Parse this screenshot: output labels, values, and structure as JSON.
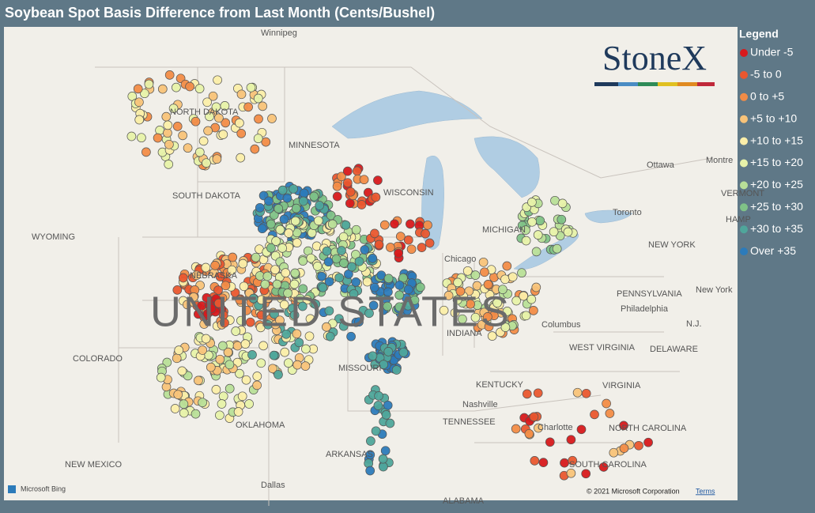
{
  "title": "Soybean Spot Basis Difference from Last Month (Cents/Bushel)",
  "legend": {
    "title": "Legend",
    "items": [
      {
        "label": "Under -5",
        "color": "#d7191c"
      },
      {
        "label": "-5 to 0",
        "color": "#e9572f"
      },
      {
        "label": "0 to +5",
        "color": "#f28c47"
      },
      {
        "label": "+5 to +10",
        "color": "#f8c379"
      },
      {
        "label": "+10 to +15",
        "color": "#fbeea9"
      },
      {
        "label": "+15 to +20",
        "color": "#e7f2a9"
      },
      {
        "label": "+20 to +25",
        "color": "#b8df98"
      },
      {
        "label": "+25 to +30",
        "color": "#80c287"
      },
      {
        "label": "+30 to +35",
        "color": "#4fa69b"
      },
      {
        "label": "Over +35",
        "color": "#2c7bba"
      }
    ]
  },
  "logo": "StoneX",
  "map_labels": [
    "Winnipeg",
    "NORTH DAKOTA",
    "MINNESOTA",
    "SOUTH DAKOTA",
    "WISCONSIN",
    "WYOMING",
    "NEBRASKA",
    "UNITED STATES",
    "COLORADO",
    "MISSOURI",
    "KENTUCKY",
    "OKLAHOMA",
    "ARKANSAS",
    "NEW MEXICO",
    "TENNESSEE",
    "Nashville",
    "Dallas",
    "Chicago",
    "INDIANA",
    "Columbus",
    "WEST VIRGINIA",
    "VIRGINIA",
    "NORTH CAROLINA",
    "SOUTH CAROLINA",
    "Charlotte",
    "PENNSYLVANIA",
    "Philadelphia",
    "NEW YORK",
    "New York",
    "Toronto",
    "Ottawa",
    "Montre",
    "VERMONT",
    "HAMP",
    "DELAWARE",
    "N.J.",
    "ALABAMA",
    "MICHIGAN"
  ],
  "attribution": {
    "bing": "Microsoft Bing",
    "copyright": "© 2021 Microsoft Corporation",
    "terms": "Terms"
  }
}
